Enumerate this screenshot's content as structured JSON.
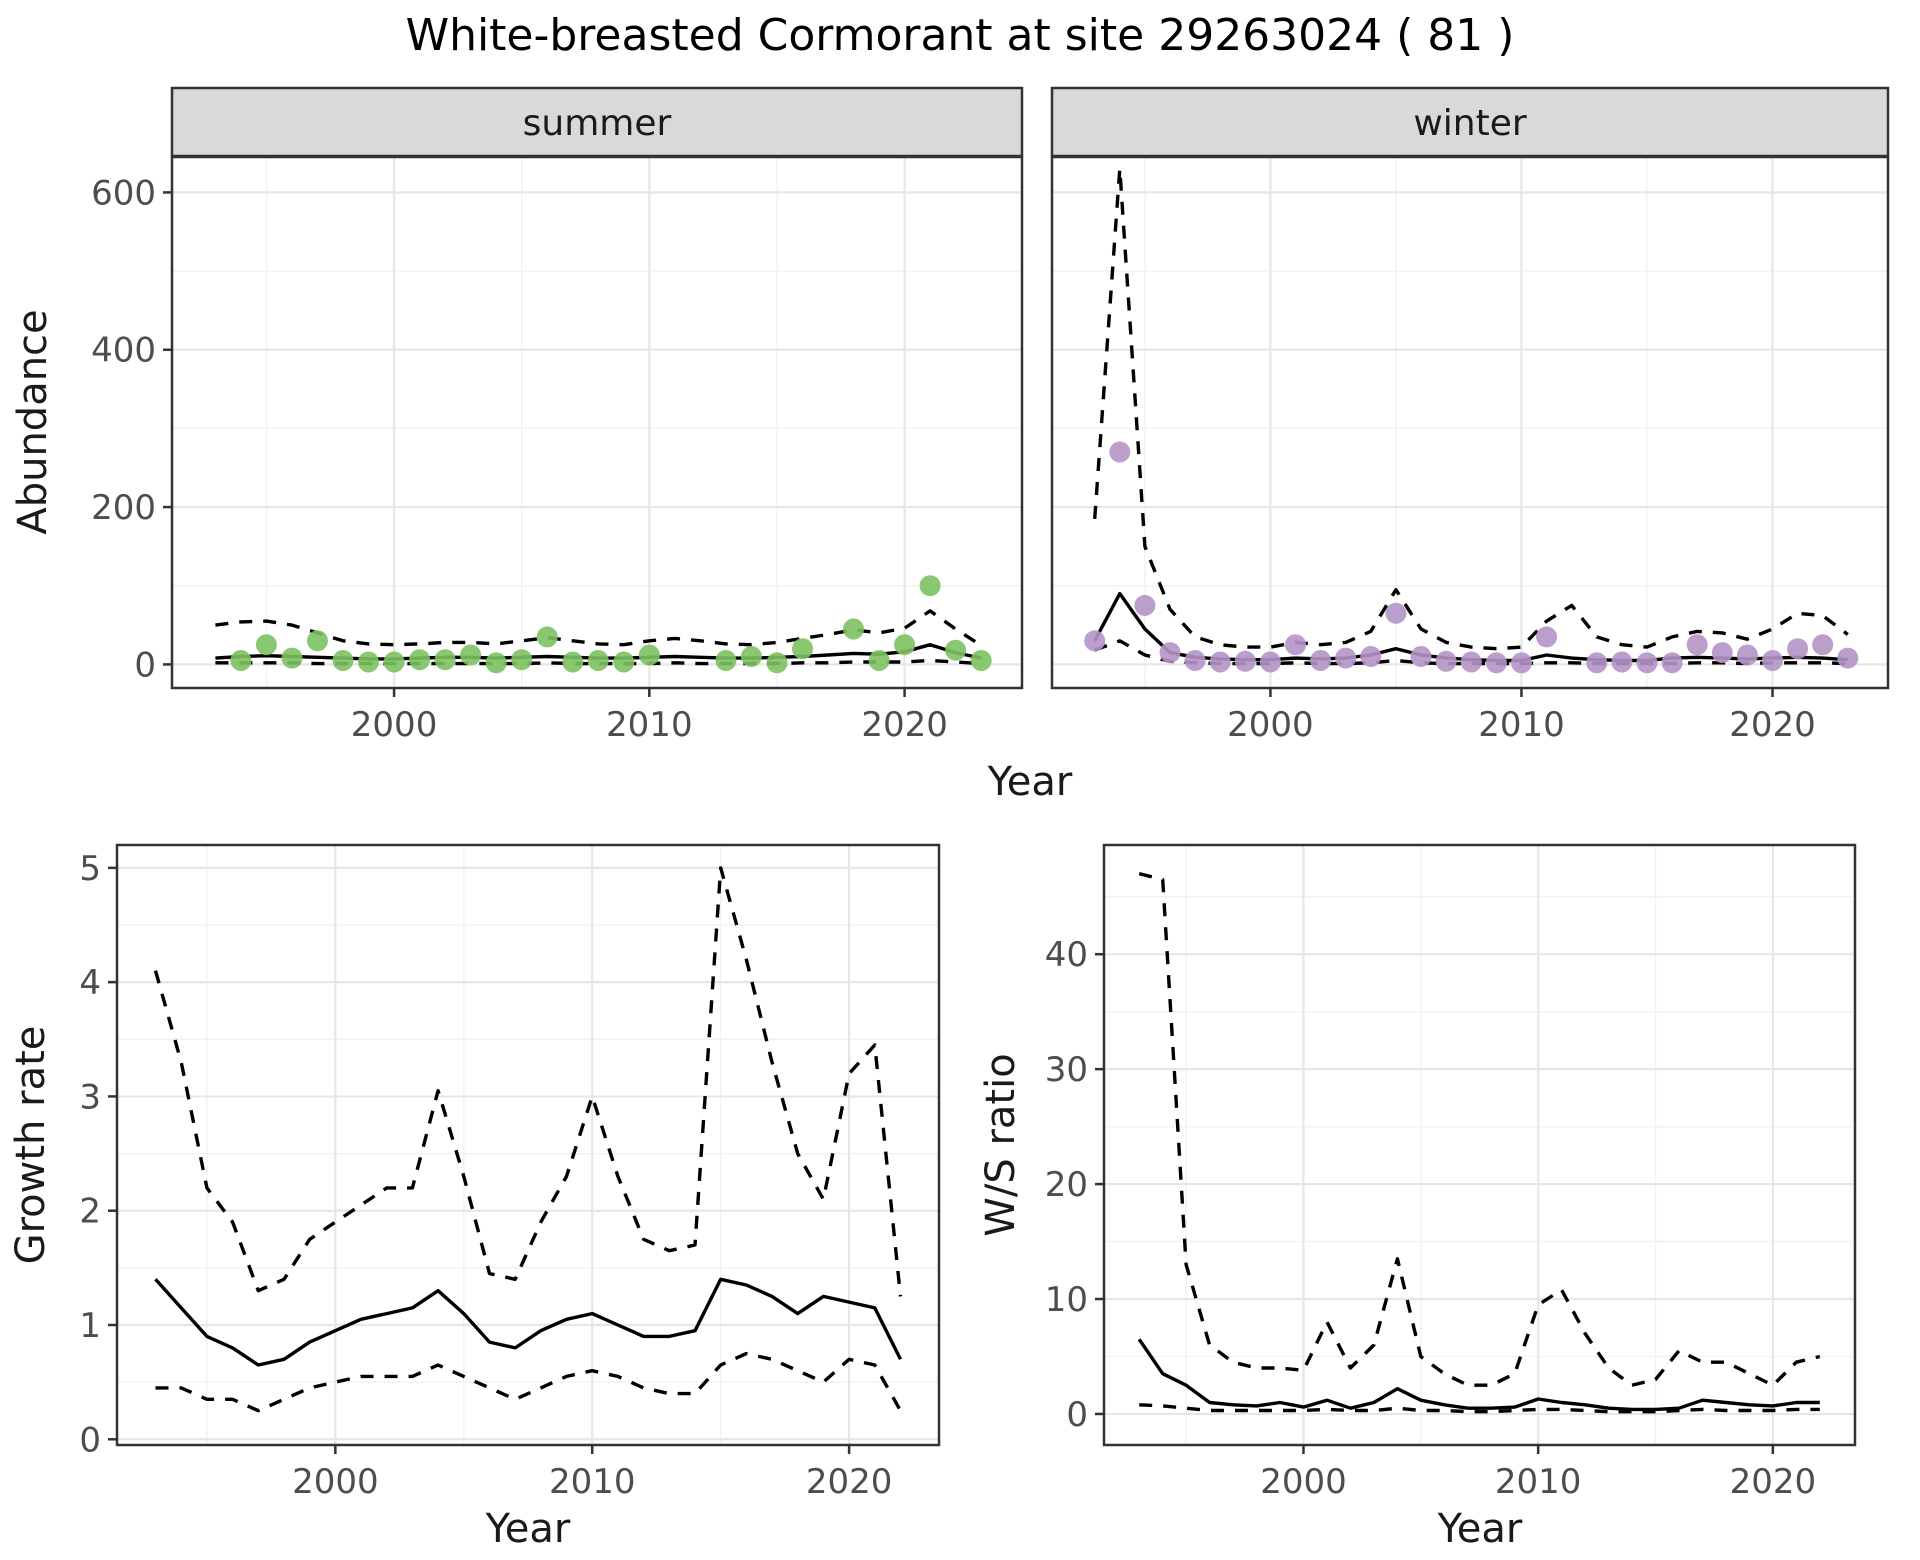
{
  "title": "White-breasted Cormorant at site 29263024 ( 81 )",
  "colors": {
    "summer_point": "#7cc161",
    "winter_point": "#b593c8",
    "line": "#000000",
    "grid_major": "#e6e6e6",
    "grid_minor": "#f2f2f2",
    "strip_bg": "#d9d9d9",
    "panel_border": "#333333",
    "axis_text": "#4d4d4d",
    "title_text": "#1a1a1a"
  },
  "chart_data": [
    {
      "id": "abundance",
      "type": "scatter",
      "xlabel": "Year",
      "ylabel": "Abundance",
      "xlim": [
        1991.3,
        2024.6
      ],
      "ylim": [
        -30,
        645
      ],
      "x_ticks": [
        2000,
        2010,
        2020
      ],
      "y_ticks": [
        0,
        200,
        400,
        600
      ],
      "x_minor": [
        1995,
        2005,
        2015
      ],
      "y_minor": [
        100,
        300,
        500
      ],
      "grid": true,
      "legend": "none",
      "facets": [
        {
          "label": "summer",
          "point_color": "#7cc161",
          "points": {
            "years": [
              1994,
              1995,
              1996,
              1997,
              1998,
              1999,
              2000,
              2001,
              2002,
              2003,
              2004,
              2005,
              2006,
              2007,
              2008,
              2009,
              2010,
              2013,
              2014,
              2015,
              2016,
              2018,
              2019,
              2020,
              2021,
              2022,
              2023
            ],
            "values": [
              5,
              25,
              8,
              30,
              5,
              3,
              3,
              6,
              6,
              12,
              2,
              6,
              35,
              3,
              5,
              3,
              12,
              5,
              10,
              2,
              20,
              45,
              5,
              25,
              100,
              18,
              5
            ]
          },
          "fit": {
            "start_year": 1993,
            "values": [
              8,
              10,
              11,
              10,
              9,
              8,
              7,
              7,
              8,
              9,
              9,
              8,
              9,
              10,
              9,
              8,
              8,
              9,
              10,
              9,
              8,
              8,
              9,
              10,
              12,
              14,
              13,
              16,
              25,
              15,
              8
            ]
          },
          "ci_upper": {
            "start_year": 1993,
            "values": [
              50,
              54,
              55,
              50,
              40,
              30,
              26,
              25,
              26,
              28,
              28,
              26,
              30,
              34,
              30,
              26,
              25,
              30,
              33,
              30,
              26,
              25,
              28,
              33,
              38,
              44,
              40,
              46,
              68,
              45,
              24
            ]
          },
          "ci_lower": {
            "start_year": 1993,
            "values": [
              2,
              2,
              2,
              2,
              1,
              1,
              1,
              1,
              1,
              1,
              1,
              1,
              1,
              2,
              1,
              1,
              1,
              1,
              2,
              1,
              1,
              1,
              1,
              2,
              2,
              3,
              3,
              3,
              5,
              3,
              1
            ]
          }
        },
        {
          "label": "winter",
          "point_color": "#b593c8",
          "points": {
            "years": [
              1993,
              1994,
              1995,
              1996,
              1997,
              1998,
              1999,
              2000,
              2001,
              2002,
              2003,
              2004,
              2005,
              2006,
              2007,
              2008,
              2009,
              2010,
              2011,
              2013,
              2014,
              2015,
              2016,
              2017,
              2018,
              2019,
              2020,
              2021,
              2022,
              2023
            ],
            "values": [
              30,
              270,
              75,
              15,
              5,
              3,
              4,
              3,
              25,
              5,
              8,
              10,
              65,
              10,
              4,
              3,
              2,
              2,
              35,
              2,
              3,
              2,
              2,
              25,
              15,
              12,
              5,
              20,
              25,
              8
            ]
          },
          "fit": {
            "start_year": 1993,
            "values": [
              30,
              90,
              45,
              15,
              9,
              7,
              6,
              6,
              8,
              7,
              8,
              12,
              20,
              12,
              8,
              6,
              5,
              5,
              12,
              8,
              6,
              5,
              5,
              8,
              9,
              8,
              7,
              8,
              9,
              8,
              6
            ]
          },
          "ci_upper": {
            "start_year": 1993,
            "values": [
              185,
              630,
              150,
              70,
              35,
              25,
              22,
              22,
              28,
              25,
              28,
              42,
              95,
              45,
              28,
              22,
              20,
              22,
              55,
              75,
              35,
              25,
              22,
              35,
              42,
              40,
              32,
              45,
              65,
              62,
              38
            ]
          },
          "ci_lower": {
            "start_year": 1993,
            "values": [
              18,
              30,
              12,
              4,
              2,
              1,
              1,
              1,
              2,
              1,
              1,
              2,
              5,
              2,
              1,
              1,
              1,
              1,
              2,
              2,
              1,
              1,
              1,
              1,
              2,
              2,
              1,
              2,
              2,
              2,
              1
            ]
          }
        }
      ]
    },
    {
      "id": "growth_rate",
      "type": "line",
      "xlabel": "Year",
      "ylabel": "Growth rate",
      "xlim": [
        1991.5,
        2023.5
      ],
      "ylim": [
        -0.05,
        5.2
      ],
      "x_ticks": [
        2000,
        2010,
        2020
      ],
      "y_ticks": [
        0,
        1,
        2,
        3,
        4,
        5
      ],
      "x_minor": [
        1995,
        2005,
        2015
      ],
      "y_minor": [
        0.5,
        1.5,
        2.5,
        3.5,
        4.5
      ],
      "grid": true,
      "legend": "none",
      "fit": {
        "start_year": 1993,
        "values": [
          1.4,
          1.15,
          0.9,
          0.8,
          0.65,
          0.7,
          0.85,
          0.95,
          1.05,
          1.1,
          1.15,
          1.3,
          1.1,
          0.85,
          0.8,
          0.95,
          1.05,
          1.1,
          1.0,
          0.9,
          0.9,
          0.95,
          1.4,
          1.35,
          1.25,
          1.1,
          1.25,
          1.2,
          1.15,
          0.7
        ]
      },
      "ci_upper": {
        "start_year": 1993,
        "values": [
          4.1,
          3.3,
          2.2,
          1.9,
          1.3,
          1.4,
          1.75,
          1.9,
          2.05,
          2.2,
          2.2,
          3.05,
          2.3,
          1.45,
          1.4,
          1.9,
          2.3,
          3.0,
          2.3,
          1.75,
          1.65,
          1.7,
          5.0,
          4.2,
          3.3,
          2.5,
          2.1,
          3.2,
          3.45,
          1.25
        ]
      },
      "ci_lower": {
        "start_year": 1993,
        "values": [
          0.45,
          0.45,
          0.35,
          0.35,
          0.25,
          0.35,
          0.45,
          0.5,
          0.55,
          0.55,
          0.55,
          0.65,
          0.55,
          0.45,
          0.35,
          0.45,
          0.55,
          0.6,
          0.55,
          0.45,
          0.4,
          0.4,
          0.65,
          0.75,
          0.7,
          0.6,
          0.5,
          0.7,
          0.65,
          0.25
        ]
      }
    },
    {
      "id": "ws_ratio",
      "type": "line",
      "xlabel": "Year",
      "ylabel": "W/S ratio",
      "xlim": [
        1991.5,
        2023.5
      ],
      "ylim": [
        -2.7,
        49.5
      ],
      "x_ticks": [
        2000,
        2010,
        2020
      ],
      "y_ticks": [
        0,
        10,
        20,
        30,
        40
      ],
      "x_minor": [
        1995,
        2005,
        2015
      ],
      "y_minor": [
        5,
        15,
        25,
        35,
        45
      ],
      "grid": true,
      "legend": "none",
      "fit": {
        "start_year": 1993,
        "values": [
          6.5,
          3.5,
          2.5,
          1.0,
          0.8,
          0.7,
          1.0,
          0.6,
          1.2,
          0.5,
          1.0,
          2.2,
          1.2,
          0.8,
          0.5,
          0.5,
          0.6,
          1.3,
          1.0,
          0.8,
          0.5,
          0.4,
          0.4,
          0.5,
          1.2,
          1.0,
          0.8,
          0.7,
          1.0,
          1.0
        ]
      },
      "ci_upper": {
        "start_year": 1993,
        "values": [
          47,
          46.5,
          13,
          6,
          4.5,
          4,
          4,
          3.8,
          8,
          4,
          6,
          13.5,
          5,
          3.5,
          2.5,
          2.5,
          3.5,
          9.5,
          10.8,
          7,
          4,
          2.5,
          3,
          5.5,
          4.5,
          4.5,
          3.5,
          2.5,
          4.5,
          5
        ]
      },
      "ci_lower": {
        "start_year": 1993,
        "values": [
          0.8,
          0.7,
          0.5,
          0.3,
          0.3,
          0.3,
          0.3,
          0.3,
          0.4,
          0.3,
          0.3,
          0.5,
          0.3,
          0.3,
          0.2,
          0.2,
          0.3,
          0.4,
          0.4,
          0.3,
          0.2,
          0.2,
          0.2,
          0.3,
          0.4,
          0.3,
          0.3,
          0.3,
          0.4,
          0.4
        ]
      }
    }
  ]
}
